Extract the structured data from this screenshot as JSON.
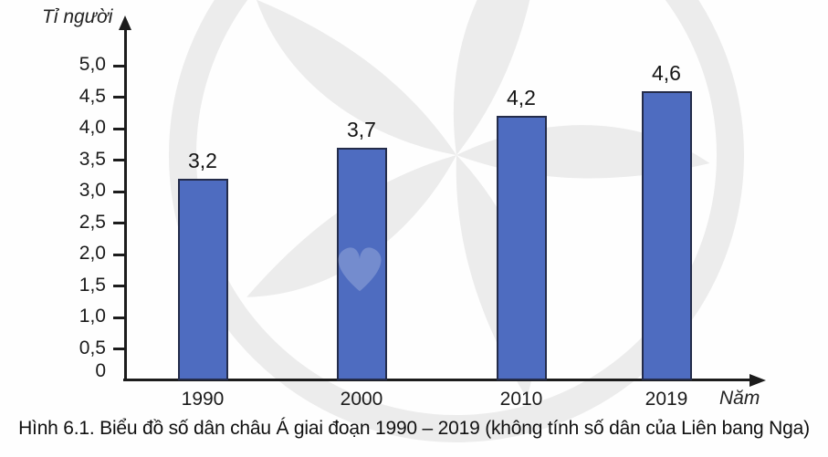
{
  "figure": {
    "caption": "Hình 6.1. Biểu đồ số dân châu Á giai đoạn 1990 – 2019 (không tính số dân của Liên bang Nga)"
  },
  "chart_data": {
    "type": "bar",
    "title": "Hình 6.1. Biểu đồ số dân châu Á giai đoạn 1990 – 2019 (không tính số dân của Liên bang Nga)",
    "categories": [
      "1990",
      "2000",
      "2010",
      "2019"
    ],
    "values": [
      3.2,
      3.7,
      4.2,
      4.6
    ],
    "value_labels": [
      "3,2",
      "3,7",
      "4,2",
      "4,6"
    ],
    "xlabel": "Năm",
    "ylabel": "Tỉ người",
    "ylim": [
      0,
      5.5
    ],
    "grid": false,
    "legend": "none",
    "y_ticks": [
      {
        "value": 0,
        "label": "0",
        "dash": false
      },
      {
        "value": 0.5,
        "label": "0,5",
        "dash": true
      },
      {
        "value": 1.0,
        "label": "1,0",
        "dash": true
      },
      {
        "value": 1.5,
        "label": "1,5",
        "dash": true
      },
      {
        "value": 2.0,
        "label": "2,0",
        "dash": true
      },
      {
        "value": 2.5,
        "label": "2,5",
        "dash": true
      },
      {
        "value": 3.0,
        "label": "3,0",
        "dash": true
      },
      {
        "value": 3.5,
        "label": "3,5",
        "dash": true
      },
      {
        "value": 4.0,
        "label": "4,0",
        "dash": true
      },
      {
        "value": 4.5,
        "label": "4,5",
        "dash": true
      },
      {
        "value": 5.0,
        "label": "5,0",
        "dash": true
      }
    ],
    "bar_color": "#4e6cc0",
    "bar_border_color": "#242c4a"
  },
  "colors": {
    "axis": "#1c1c1c",
    "text": "#1b1b1b",
    "watermark": "#ececec",
    "background": "#fefefe"
  }
}
